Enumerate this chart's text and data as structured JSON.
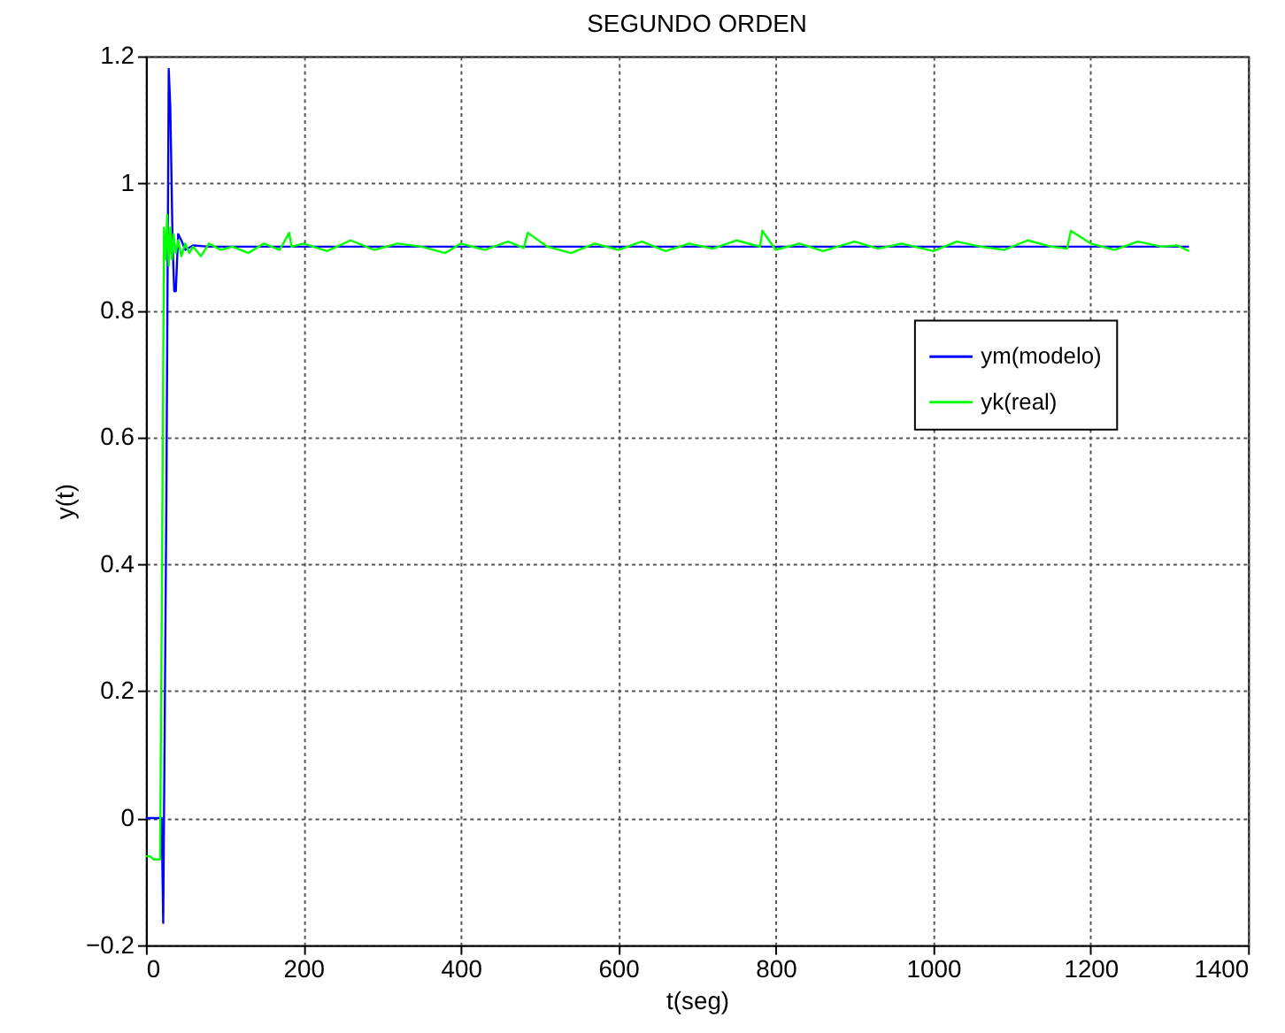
{
  "chart_data": {
    "type": "line",
    "title": "SEGUNDO ORDEN",
    "xlabel": "t(seg)",
    "ylabel": "y(t)",
    "xlim": [
      0,
      1400
    ],
    "xticks": [
      0,
      200,
      400,
      600,
      800,
      1000,
      1200,
      1400
    ],
    "ylim": [
      -0.2,
      1.2
    ],
    "yticks": [
      -0.2,
      0,
      0.2,
      0.4,
      0.6,
      0.8,
      1,
      1.2
    ],
    "grid": true,
    "legend": "right",
    "marker": "none",
    "line_style": "solid",
    "series": [
      {
        "name": "ym(modelo)",
        "color": "#0000ff",
        "x": [
          0,
          20,
          22,
          26,
          29,
          31,
          34,
          36,
          38,
          41,
          45,
          50,
          60,
          80,
          200,
          400,
          600,
          800,
          1000,
          1200,
          1325
        ],
        "values": [
          0,
          0,
          -0.165,
          0.5,
          1.18,
          1.12,
          0.9,
          0.83,
          0.83,
          0.92,
          0.91,
          0.895,
          0.902,
          0.9,
          0.9,
          0.9,
          0.9,
          0.9,
          0.9,
          0.9,
          0.9
        ]
      },
      {
        "name": "yk(real)",
        "color": "#00ff00",
        "x": [
          0,
          5,
          10,
          18,
          20,
          23,
          25,
          27,
          29,
          31,
          33,
          35,
          38,
          41,
          45,
          50,
          55,
          60,
          70,
          80,
          95,
          110,
          130,
          150,
          170,
          182,
          185,
          200,
          230,
          260,
          290,
          320,
          350,
          380,
          400,
          430,
          460,
          480,
          485,
          510,
          540,
          570,
          600,
          630,
          660,
          690,
          720,
          750,
          780,
          783,
          800,
          830,
          860,
          900,
          930,
          960,
          1000,
          1030,
          1060,
          1090,
          1120,
          1150,
          1170,
          1175,
          1200,
          1230,
          1260,
          1290,
          1310,
          1325
        ],
        "values": [
          -0.06,
          -0.06,
          -0.065,
          -0.065,
          0.3,
          0.93,
          0.88,
          0.95,
          0.87,
          0.93,
          0.88,
          0.92,
          0.89,
          0.91,
          0.885,
          0.905,
          0.89,
          0.9,
          0.885,
          0.905,
          0.895,
          0.9,
          0.89,
          0.905,
          0.895,
          0.922,
          0.9,
          0.905,
          0.893,
          0.91,
          0.895,
          0.905,
          0.9,
          0.89,
          0.905,
          0.895,
          0.908,
          0.898,
          0.922,
          0.9,
          0.89,
          0.905,
          0.895,
          0.908,
          0.893,
          0.905,
          0.897,
          0.91,
          0.9,
          0.925,
          0.895,
          0.905,
          0.893,
          0.908,
          0.897,
          0.905,
          0.893,
          0.908,
          0.9,
          0.895,
          0.91,
          0.9,
          0.897,
          0.925,
          0.905,
          0.895,
          0.908,
          0.9,
          0.902,
          0.893
        ]
      }
    ]
  }
}
